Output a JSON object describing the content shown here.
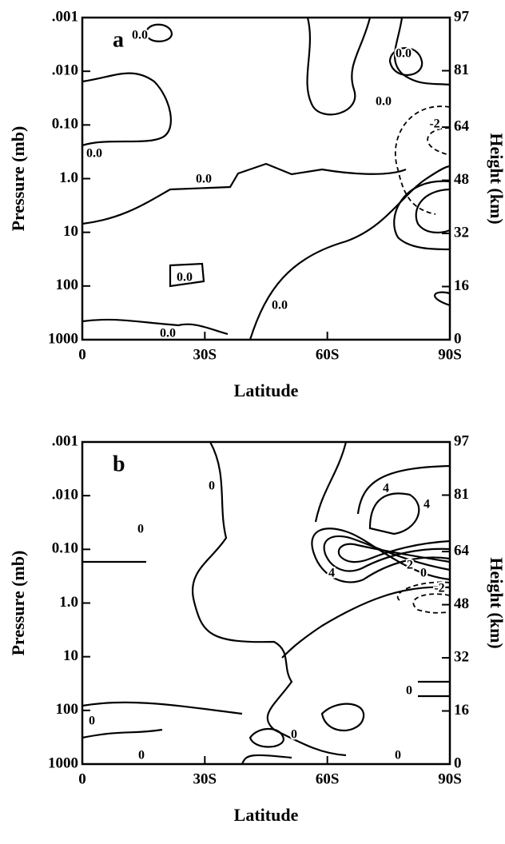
{
  "chart_data": [
    {
      "type": "contour",
      "panel_label": "a",
      "xlabel": "Latitude",
      "ylabel": "Pressure (mb)",
      "y2label": "Height (km)",
      "xlim": [
        0,
        90
      ],
      "xticks": [
        0,
        {
          "value": 30,
          "label": "30S"
        },
        {
          "value": 60,
          "label": "60S"
        },
        {
          "value": 90,
          "label": "90S"
        }
      ],
      "ylim": [
        1000,
        0.001
      ],
      "ylog": true,
      "yticks": [
        {
          "value": 0.001,
          "label": ".001"
        },
        {
          "value": 0.01,
          "label": ".010"
        },
        {
          "value": 0.1,
          "label": "0.10"
        },
        {
          "value": 1,
          "label": "1.0"
        },
        10,
        100,
        1000
      ],
      "y2lim": [
        0,
        97
      ],
      "y2ticks": [
        97,
        81,
        64,
        48,
        32,
        16,
        0
      ],
      "contour_labels": [
        "0.0",
        "0.0",
        "0.0",
        "-2",
        "0.0",
        "0.0",
        "0.0",
        "0.0",
        "0.0"
      ]
    },
    {
      "type": "contour",
      "panel_label": "b",
      "xlabel": "Latitude",
      "ylabel": "Pressure (mb)",
      "y2label": "Height (km)",
      "xlim": [
        0,
        90
      ],
      "xticks": [
        0,
        {
          "value": 30,
          "label": "30S"
        },
        {
          "value": 60,
          "label": "60S"
        },
        {
          "value": 90,
          "label": "90S"
        }
      ],
      "ylim": [
        1000,
        0.001
      ],
      "ylog": true,
      "yticks": [
        {
          "value": 0.001,
          "label": ".001"
        },
        {
          "value": 0.01,
          "label": ".010"
        },
        {
          "value": 0.1,
          "label": "0.10"
        },
        {
          "value": 1,
          "label": "1.0"
        },
        10,
        100,
        1000
      ],
      "y2lim": [
        0,
        97
      ],
      "y2ticks": [
        97,
        81,
        64,
        48,
        32,
        16,
        0
      ],
      "contour_labels": [
        "0",
        "4",
        "4",
        "4",
        "2",
        "0",
        "-2",
        "0",
        "0",
        "0",
        "0",
        "0",
        "0"
      ]
    }
  ]
}
